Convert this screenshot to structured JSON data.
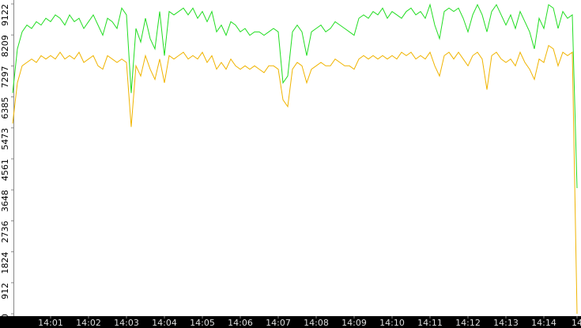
{
  "chart_data": {
    "type": "line",
    "categories": [
      null,
      null,
      null,
      null,
      null,
      null,
      null,
      null,
      "14:01",
      null,
      null,
      null,
      null,
      null,
      null,
      null,
      "14:02",
      null,
      null,
      null,
      null,
      null,
      null,
      null,
      "14:03",
      null,
      null,
      null,
      null,
      null,
      null,
      null,
      "14:04",
      null,
      null,
      null,
      null,
      null,
      null,
      null,
      "14:05",
      null,
      null,
      null,
      null,
      null,
      null,
      null,
      "14:06",
      null,
      null,
      null,
      null,
      null,
      null,
      null,
      "14:07",
      null,
      null,
      null,
      null,
      null,
      null,
      null,
      "14:08",
      null,
      null,
      null,
      null,
      null,
      null,
      null,
      "14:09",
      null,
      null,
      null,
      null,
      null,
      null,
      null,
      "14:10",
      null,
      null,
      null,
      null,
      null,
      null,
      null,
      "14:11",
      null,
      null,
      null,
      null,
      null,
      null,
      null,
      "14:12",
      null,
      null,
      null,
      null,
      null,
      null,
      null,
      "14:13",
      null,
      null,
      null,
      null,
      null,
      null,
      null,
      "14:14",
      null,
      null,
      null,
      null,
      null,
      null,
      "14"
    ],
    "series": [
      {
        "color": "#22dd22",
        "values": [
          6500,
          7800,
          8300,
          8500,
          8400,
          8600,
          8500,
          8700,
          8600,
          8800,
          8700,
          8500,
          8800,
          8600,
          8700,
          8400,
          8600,
          8800,
          8500,
          8200,
          8700,
          8600,
          8400,
          9000,
          8800,
          6500,
          8400,
          8000,
          8700,
          8100,
          7800,
          8900,
          7600,
          8900,
          8800,
          8900,
          9000,
          8800,
          9000,
          8700,
          8900,
          8600,
          8900,
          8300,
          8500,
          8200,
          8600,
          8500,
          8300,
          8400,
          8200,
          8300,
          8300,
          8200,
          8300,
          8400,
          8300,
          6800,
          7000,
          8300,
          8500,
          8300,
          7600,
          8300,
          8400,
          8500,
          8300,
          8400,
          8600,
          8500,
          8400,
          8300,
          8200,
          8700,
          8800,
          8700,
          8900,
          8800,
          9000,
          8700,
          8900,
          8800,
          8700,
          8900,
          9000,
          8800,
          8900,
          8700,
          9100,
          8500,
          8100,
          8900,
          9000,
          8900,
          9000,
          8700,
          8300,
          8800,
          9100,
          8800,
          8300,
          8900,
          9100,
          8800,
          8500,
          8800,
          8400,
          8900,
          8600,
          8300,
          7800,
          8700,
          8400,
          9100,
          9000,
          8400,
          8900,
          8700,
          8800,
          3700
        ]
      },
      {
        "color": "#f0b400",
        "values": [
          5600,
          6800,
          7300,
          7400,
          7500,
          7400,
          7600,
          7500,
          7600,
          7500,
          7700,
          7500,
          7600,
          7500,
          7700,
          7400,
          7500,
          7600,
          7300,
          7200,
          7600,
          7500,
          7400,
          7500,
          7400,
          5500,
          7300,
          7000,
          7600,
          7200,
          6900,
          7500,
          6800,
          7600,
          7500,
          7600,
          7700,
          7500,
          7600,
          7500,
          7700,
          7400,
          7600,
          7200,
          7400,
          7200,
          7500,
          7300,
          7200,
          7300,
          7200,
          7300,
          7200,
          7100,
          7300,
          7300,
          7200,
          6300,
          6100,
          7200,
          7400,
          7300,
          6800,
          7200,
          7300,
          7400,
          7300,
          7300,
          7500,
          7400,
          7300,
          7300,
          7200,
          7500,
          7600,
          7500,
          7600,
          7500,
          7600,
          7500,
          7600,
          7500,
          7700,
          7600,
          7700,
          7500,
          7600,
          7500,
          7700,
          7300,
          7000,
          7600,
          7700,
          7500,
          7700,
          7500,
          7300,
          7600,
          7700,
          7500,
          6600,
          7600,
          7700,
          7500,
          7400,
          7500,
          7300,
          7700,
          7400,
          7200,
          6900,
          7500,
          7400,
          7900,
          7800,
          7300,
          7700,
          7600,
          7700,
          0
        ]
      }
    ],
    "ylim": [
      0,
      9122
    ],
    "yticks": [
      0,
      912,
      1824,
      2736,
      3648,
      4561,
      5473,
      6385,
      7297,
      8209,
      9122
    ]
  }
}
